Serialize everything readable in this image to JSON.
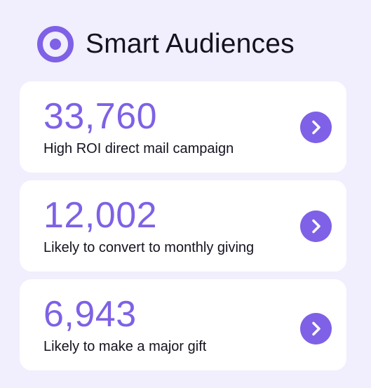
{
  "header": {
    "title": "Smart Audiences",
    "icon": "target-icon"
  },
  "colors": {
    "background": "#f1eefd",
    "card": "#ffffff",
    "accent": "#7e61e6",
    "text": "#14121f"
  },
  "audiences": [
    {
      "count": "33,760",
      "label": "High ROI direct mail campaign",
      "action_icon": "chevron-right-icon"
    },
    {
      "count": "12,002",
      "label": "Likely to convert to monthly giving",
      "action_icon": "chevron-right-icon"
    },
    {
      "count": "6,943",
      "label": "Likely to make a major gift",
      "action_icon": "chevron-right-icon"
    }
  ]
}
